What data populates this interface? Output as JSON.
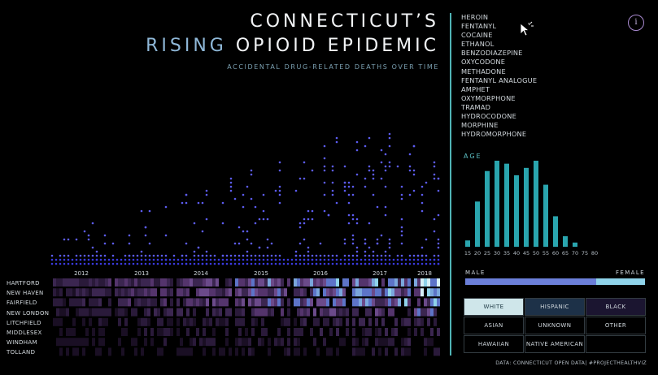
{
  "header": {
    "title_line1": "CONNECTICUT’S",
    "title_line2_highlight": "RISING",
    "title_line2_rest": " OPIOID EPIDEMIC",
    "subtitle": "ACCIDENTAL DRUG-RELATED DEATHS OVER TIME"
  },
  "info_button": {
    "label": "i"
  },
  "drugs": [
    "HEROIN",
    "FENTANYL",
    "COCAINE",
    "ETHANOL",
    "BENZODIAZEPINE",
    "OXYCODONE",
    "METHADONE",
    "FENTANYL ANALOGUE",
    "AMPHET",
    "OXYMORPHONE",
    "TRAMAD",
    "HYDROCODONE",
    "MORPHINE",
    "HYDROMORPHONE"
  ],
  "timeline": {
    "years": [
      "2012",
      "2013",
      "2014",
      "2015",
      "2016",
      "2017",
      "2018"
    ],
    "colors": {
      "dot": "#3a3ae0",
      "dot_light": "#5c5cf0"
    }
  },
  "counties": [
    "HARTFORD",
    "NEW HAVEN",
    "FAIRFIELD",
    "NEW LONDON",
    "LITCHFIELD",
    "MIDDLESEX",
    "WINDHAM",
    "TOLLAND"
  ],
  "age_chart": {
    "label": "AGE",
    "chart_data": {
      "type": "bar",
      "categories": [
        "15",
        "20",
        "25",
        "30",
        "35",
        "40",
        "45",
        "50",
        "55",
        "60",
        "65",
        "70",
        "75",
        "80"
      ],
      "values": [
        6,
        43,
        72,
        82,
        79,
        68,
        75,
        82,
        59,
        29,
        10,
        4,
        0,
        0
      ],
      "ylim": [
        0,
        90
      ]
    },
    "color": "#2aa5ae"
  },
  "gender": {
    "male_label": "MALE",
    "female_label": "FEMALE",
    "male_fraction": 0.73,
    "colors": {
      "male": "#6b7fd9",
      "female": "#8fd3ea"
    }
  },
  "race": [
    {
      "label": "WHITE",
      "bg": "#cfe6ea",
      "fg": "#1f3a44"
    },
    {
      "label": "HISPANIC",
      "bg": "#1d3148",
      "fg": "#cfd6dc"
    },
    {
      "label": "BLACK",
      "bg": "#1b1530",
      "fg": "#cfd6dc"
    },
    {
      "label": "ASIAN",
      "bg": "#000000",
      "fg": "#cfd6dc"
    },
    {
      "label": "UNKNOWN",
      "bg": "#000000",
      "fg": "#cfd6dc"
    },
    {
      "label": "OTHER",
      "bg": "#000000",
      "fg": "#cfd6dc"
    },
    {
      "label": "HAWAIIAN",
      "bg": "#000000",
      "fg": "#cfd6dc"
    },
    {
      "label": "NATIVE AMERICAN",
      "bg": "#000000",
      "fg": "#cfd6dc"
    },
    {
      "label": "",
      "bg": "#000000",
      "fg": "#cfd6dc"
    }
  ],
  "footer": "DATA: CONNECTICUT OPEN DATA| #PROJECTHEALTHVIZ"
}
